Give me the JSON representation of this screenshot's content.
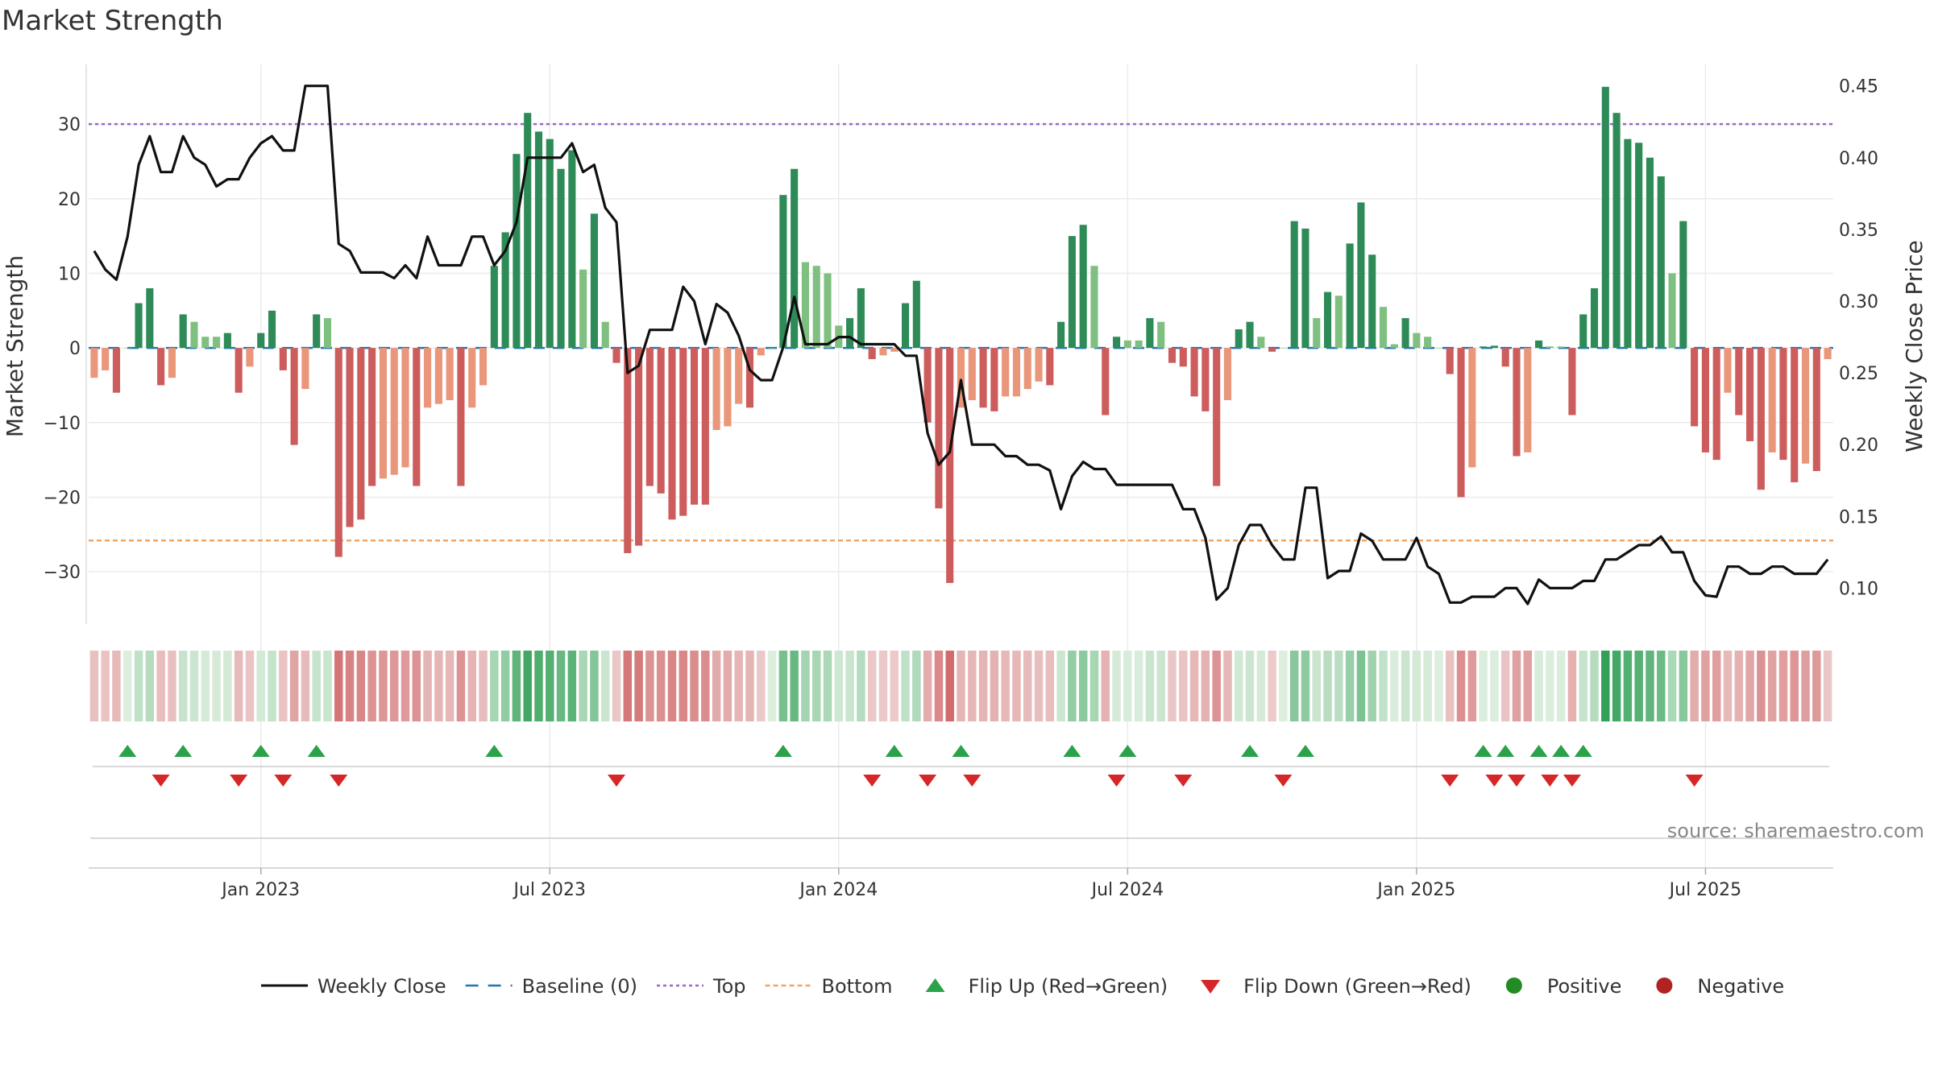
{
  "chart_data": {
    "type": "bar",
    "title": "Market Strength",
    "ylabel_left": "Market Strength",
    "ylabel_right": "Weekly Close Price",
    "source": "source: sharemaestro.com",
    "ylim_left": [
      -37,
      38
    ],
    "ylim_right": [
      0.075,
      0.465
    ],
    "yticks_left": [
      "30",
      "20",
      "10",
      "0",
      "−10",
      "−20",
      "−30"
    ],
    "yticks_left_values": [
      30,
      20,
      10,
      0,
      -10,
      -20,
      -30
    ],
    "yticks_right": [
      "0.45",
      "0.40",
      "0.35",
      "0.30",
      "0.25",
      "0.20",
      "0.15",
      "0.10"
    ],
    "yticks_right_values": [
      0.45,
      0.4,
      0.35,
      0.3,
      0.25,
      0.2,
      0.15,
      0.1
    ],
    "x_ticks": [
      {
        "label": "Jan 2023",
        "week": 15
      },
      {
        "label": "Jul 2023",
        "week": 41
      },
      {
        "label": "Jan 2024",
        "week": 67
      },
      {
        "label": "Jul 2024",
        "week": 93
      },
      {
        "label": "Jan 2025",
        "week": 119
      },
      {
        "label": "Jul 2025",
        "week": 145
      }
    ],
    "top_level": 30,
    "bottom_level": -25.8,
    "strength": [
      -4,
      -3,
      -6,
      0,
      6,
      8,
      -5,
      -4,
      4.5,
      3.5,
      1.5,
      1.5,
      2,
      -6,
      -2.5,
      2,
      5,
      -3,
      -13,
      -5.5,
      4.5,
      4,
      -28,
      -24,
      -23,
      -18.5,
      -17.5,
      -17,
      -16,
      -18.5,
      -8,
      -7.5,
      -7,
      -18.5,
      -8,
      -5,
      11,
      15.5,
      26,
      31.5,
      29,
      28,
      24,
      26.5,
      10.5,
      18,
      3.5,
      -2,
      -27.5,
      -26.5,
      -18.5,
      -19.5,
      -23,
      -22.5,
      -21,
      -21,
      -11,
      -10.5,
      -7.5,
      -8,
      -1,
      0,
      20.5,
      24,
      11.5,
      11,
      10,
      3,
      4,
      8,
      -1.5,
      -1,
      -0.5,
      6,
      9,
      -10,
      -21.5,
      -31.5,
      -8,
      -7,
      -8,
      -8.5,
      -6.5,
      -6.5,
      -5.5,
      -4.5,
      -5,
      3.5,
      15,
      16.5,
      11,
      -9,
      1.5,
      1,
      1,
      4,
      3.5,
      -2,
      -2.5,
      -6.5,
      -8.5,
      -18.5,
      -7,
      2.5,
      3.5,
      1.5,
      -0.5,
      0,
      17,
      16,
      4,
      7.5,
      7,
      14,
      19.5,
      12.5,
      5.5,
      0.5,
      4,
      2,
      1.5,
      0,
      -3.5,
      -20,
      -16,
      0.2,
      0.3,
      -2.5,
      -14.5,
      -14,
      1,
      0.2,
      0.2,
      -9,
      4.5,
      8,
      35,
      31.5,
      28,
      27.5,
      25.5,
      23,
      10,
      17,
      -10.5,
      -14,
      -15,
      -6,
      -9,
      -12.5,
      -19,
      -14,
      -15,
      -18,
      -15.5,
      -16.5,
      -1.5
    ],
    "close": [
      0.335,
      0.322,
      0.315,
      0.345,
      0.395,
      0.415,
      0.39,
      0.39,
      0.415,
      0.4,
      0.395,
      0.38,
      0.385,
      0.385,
      0.4,
      0.41,
      0.415,
      0.405,
      0.405,
      0.45,
      0.45,
      0.45,
      0.34,
      0.335,
      0.32,
      0.32,
      0.32,
      0.316,
      0.325,
      0.316,
      0.345,
      0.325,
      0.325,
      0.325,
      0.345,
      0.345,
      0.325,
      0.335,
      0.355,
      0.4,
      0.4,
      0.4,
      0.4,
      0.41,
      0.39,
      0.395,
      0.365,
      0.355,
      0.25,
      0.255,
      0.28,
      0.28,
      0.28,
      0.31,
      0.3,
      0.27,
      0.298,
      0.292,
      0.276,
      0.252,
      0.245,
      0.245,
      0.268,
      0.303,
      0.27,
      0.27,
      0.27,
      0.275,
      0.275,
      0.27,
      0.27,
      0.27,
      0.27,
      0.262,
      0.262,
      0.208,
      0.186,
      0.195,
      0.245,
      0.2,
      0.2,
      0.2,
      0.192,
      0.192,
      0.186,
      0.186,
      0.182,
      0.155,
      0.178,
      0.188,
      0.183,
      0.183,
      0.172,
      0.172,
      0.172,
      0.172,
      0.172,
      0.172,
      0.155,
      0.155,
      0.135,
      0.092,
      0.1,
      0.13,
      0.144,
      0.144,
      0.13,
      0.12,
      0.12,
      0.17,
      0.17,
      0.107,
      0.112,
      0.112,
      0.138,
      0.133,
      0.12,
      0.12,
      0.12,
      0.135,
      0.115,
      0.11,
      0.09,
      0.09,
      0.094,
      0.094,
      0.094,
      0.1,
      0.1,
      0.089,
      0.106,
      0.1,
      0.1,
      0.1,
      0.105,
      0.105,
      0.12,
      0.12,
      0.125,
      0.13,
      0.13,
      0.136,
      0.125,
      0.125,
      0.105,
      0.095,
      0.094,
      0.115,
      0.115,
      0.11,
      0.11,
      0.115,
      0.115,
      0.11,
      0.11,
      0.11,
      0.12
    ],
    "flip_up_weeks": [
      3,
      8,
      15,
      20,
      36,
      62,
      72,
      78,
      88,
      93,
      104,
      109,
      125,
      127,
      130,
      132,
      134
    ],
    "flip_down_weeks": [
      6,
      13,
      17,
      22,
      47,
      70,
      75,
      79,
      92,
      98,
      107,
      122,
      126,
      128,
      131,
      133,
      144
    ],
    "colors": {
      "green_strong": "#2e8b57",
      "green_light": "#7fbf7f",
      "red_strong": "#cd5c5c",
      "red_light": "#e9967a",
      "close_line": "#111111",
      "top_line": "#9966cc",
      "bottom_line": "#f4a460",
      "baseline": "#1f77b4",
      "flip_up": "#2aa24a",
      "flip_down": "#d62728",
      "positive": "#228b22",
      "negative": "#b22222"
    },
    "legend": [
      {
        "label": "Weekly Close",
        "symbol": "line"
      },
      {
        "label": "Baseline (0)",
        "symbol": "dash"
      },
      {
        "label": "Top",
        "symbol": "dot-purple"
      },
      {
        "label": "Bottom",
        "symbol": "dot-orange"
      },
      {
        "label": "Flip Up (Red→Green)",
        "symbol": "tri-up"
      },
      {
        "label": "Flip Down (Green→Red)",
        "symbol": "tri-down"
      },
      {
        "label": "Positive",
        "symbol": "circle-green"
      },
      {
        "label": "Negative",
        "symbol": "circle-red"
      }
    ]
  }
}
